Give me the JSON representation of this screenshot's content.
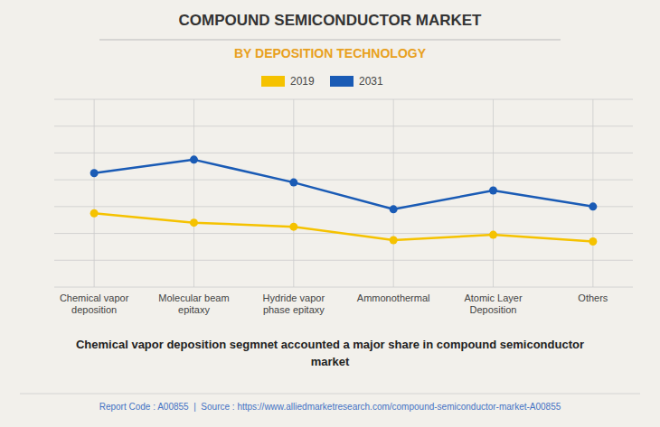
{
  "chart_data": {
    "type": "line",
    "title": "COMPOUND SEMICONDUCTOR MARKET",
    "subtitle": "BY DEPOSITION TECHNOLOGY",
    "categories": [
      "Chemical vapor\ndeposition",
      "Molecular beam\nepitaxy",
      "Hydride vapor\nphase epitaxy",
      "Ammonothermal",
      "Atomic Layer\nDeposition",
      "Others"
    ],
    "series": [
      {
        "name": "2031",
        "color": "#1A5BB5",
        "values": [
          8.5,
          9.5,
          7.8,
          5.8,
          7.2,
          6.0
        ]
      },
      {
        "name": "2019",
        "color": "#F5C200",
        "values": [
          5.5,
          4.8,
          4.5,
          3.5,
          3.9,
          3.4
        ]
      }
    ],
    "ylim": [
      0,
      14
    ],
    "yticks": [
      0,
      2,
      4,
      6,
      8,
      10,
      12,
      14
    ],
    "grid": true,
    "tick_labels": "x",
    "marker": "circle",
    "legend": "top",
    "annotations": [
      "Chemical vapor deposition segmnet accounted a major share in compound semiconductor\nmarket",
      "Report Code : A00855  |  Source : https://www.alliedmarketresearch.com/compound-semiconductor-market-A00855"
    ]
  }
}
